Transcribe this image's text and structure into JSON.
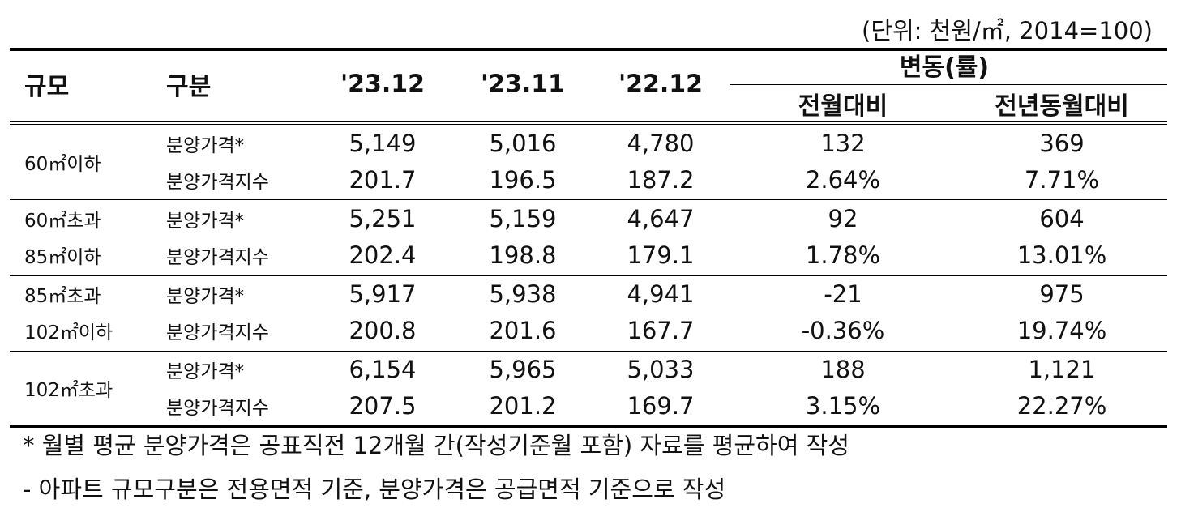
{
  "unit": "(단위: 천원/㎡, 2014=100)",
  "header": {
    "scale": "규모",
    "category": "구분",
    "col1": "'23.12",
    "col2": "'23.11",
    "col3": "'22.12",
    "change": "변동(률)",
    "mom": "전월대비",
    "yoy": "전년동월대비"
  },
  "groups": [
    {
      "labels": [
        "60㎡이하"
      ],
      "rows": [
        [
          "분양가격*",
          "5,149",
          "5,016",
          "4,780",
          "132",
          "369"
        ],
        [
          "분양가격지수",
          "201.7",
          "196.5",
          "187.2",
          "2.64%",
          "7.71%"
        ]
      ]
    },
    {
      "labels": [
        "60㎡초과",
        "85㎡이하"
      ],
      "rows": [
        [
          "분양가격*",
          "5,251",
          "5,159",
          "4,647",
          "92",
          "604"
        ],
        [
          "분양가격지수",
          "202.4",
          "198.8",
          "179.1",
          "1.78%",
          "13.01%"
        ]
      ]
    },
    {
      "labels": [
        "85㎡초과",
        "102㎡이하"
      ],
      "rows": [
        [
          "분양가격*",
          "5,917",
          "5,938",
          "4,941",
          "-21",
          "975"
        ],
        [
          "분양가격지수",
          "200.8",
          "201.6",
          "167.7",
          "-0.36%",
          "19.74%"
        ]
      ]
    },
    {
      "labels": [
        "102㎡초과"
      ],
      "rows": [
        [
          "분양가격*",
          "6,154",
          "5,965",
          "5,033",
          "188",
          "1,121"
        ],
        [
          "분양가격지수",
          "207.5",
          "201.2",
          "169.7",
          "3.15%",
          "22.27%"
        ]
      ]
    }
  ],
  "notes": [
    "* 월별 평균 분양가격은 공표직전 12개월 간(작성기준월 포함) 자료를 평균하여 작성",
    "- 아파트 규모구분은 전용면적 기준, 분양가격은 공급면적 기준으로 작성"
  ]
}
